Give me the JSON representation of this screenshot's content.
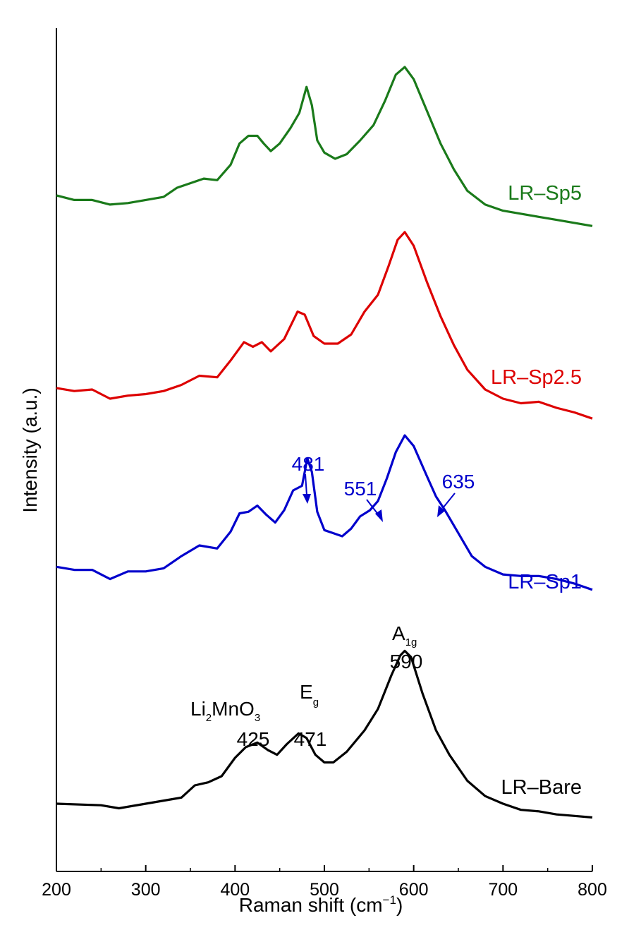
{
  "chart_data": {
    "type": "line",
    "title": "",
    "xlabel": "Raman shift (cm⁻¹)",
    "xlabel_parts": {
      "main": "Raman shift (cm",
      "sup": "−1",
      "close": ")"
    },
    "ylabel": "Intensity (a.u.)",
    "xlim": [
      200,
      800
    ],
    "xticks": [
      200,
      300,
      400,
      500,
      600,
      700,
      800
    ],
    "xtick_labels": [
      "200",
      "300",
      "400",
      "500",
      "600",
      "700",
      "800"
    ],
    "ylim": [
      0,
      1
    ],
    "yticks_shown": false,
    "series": [
      {
        "name": "LR–Bare",
        "color": "#000000",
        "points": [
          [
            200,
            0.036
          ],
          [
            250,
            0.034
          ],
          [
            270,
            0.03
          ],
          [
            300,
            0.036
          ],
          [
            330,
            0.042
          ],
          [
            340,
            0.044
          ],
          [
            355,
            0.06
          ],
          [
            370,
            0.064
          ],
          [
            385,
            0.072
          ],
          [
            400,
            0.096
          ],
          [
            412,
            0.11
          ],
          [
            425,
            0.116
          ],
          [
            437,
            0.106
          ],
          [
            447,
            0.1
          ],
          [
            458,
            0.114
          ],
          [
            471,
            0.128
          ],
          [
            480,
            0.122
          ],
          [
            490,
            0.1
          ],
          [
            500,
            0.09
          ],
          [
            510,
            0.09
          ],
          [
            525,
            0.104
          ],
          [
            545,
            0.132
          ],
          [
            560,
            0.16
          ],
          [
            575,
            0.204
          ],
          [
            585,
            0.23
          ],
          [
            590,
            0.236
          ],
          [
            597,
            0.228
          ],
          [
            610,
            0.18
          ],
          [
            625,
            0.132
          ],
          [
            640,
            0.1
          ],
          [
            660,
            0.066
          ],
          [
            680,
            0.046
          ],
          [
            700,
            0.036
          ],
          [
            720,
            0.028
          ],
          [
            740,
            0.026
          ],
          [
            760,
            0.022
          ],
          [
            780,
            0.02
          ],
          [
            800,
            0.018
          ]
        ]
      },
      {
        "name": "LR–Sp1",
        "color": "#0000cc",
        "points": [
          [
            200,
            0.346
          ],
          [
            220,
            0.342
          ],
          [
            240,
            0.342
          ],
          [
            260,
            0.33
          ],
          [
            280,
            0.34
          ],
          [
            300,
            0.34
          ],
          [
            320,
            0.344
          ],
          [
            340,
            0.36
          ],
          [
            360,
            0.374
          ],
          [
            380,
            0.37
          ],
          [
            395,
            0.392
          ],
          [
            405,
            0.416
          ],
          [
            415,
            0.418
          ],
          [
            425,
            0.426
          ],
          [
            435,
            0.414
          ],
          [
            445,
            0.404
          ],
          [
            455,
            0.42
          ],
          [
            465,
            0.446
          ],
          [
            475,
            0.452
          ],
          [
            481,
            0.488
          ],
          [
            486,
            0.47
          ],
          [
            492,
            0.418
          ],
          [
            500,
            0.394
          ],
          [
            510,
            0.39
          ],
          [
            520,
            0.386
          ],
          [
            530,
            0.396
          ],
          [
            540,
            0.412
          ],
          [
            551,
            0.42
          ],
          [
            560,
            0.432
          ],
          [
            570,
            0.462
          ],
          [
            580,
            0.496
          ],
          [
            590,
            0.518
          ],
          [
            600,
            0.504
          ],
          [
            615,
            0.464
          ],
          [
            625,
            0.438
          ],
          [
            635,
            0.42
          ],
          [
            650,
            0.39
          ],
          [
            665,
            0.36
          ],
          [
            680,
            0.346
          ],
          [
            700,
            0.336
          ],
          [
            720,
            0.334
          ],
          [
            740,
            0.334
          ],
          [
            760,
            0.33
          ],
          [
            780,
            0.324
          ],
          [
            800,
            0.316
          ]
        ]
      },
      {
        "name": "LR–Sp2.5",
        "color": "#dd0000",
        "points": [
          [
            200,
            0.58
          ],
          [
            220,
            0.576
          ],
          [
            240,
            0.578
          ],
          [
            260,
            0.566
          ],
          [
            280,
            0.57
          ],
          [
            300,
            0.572
          ],
          [
            320,
            0.576
          ],
          [
            340,
            0.584
          ],
          [
            360,
            0.596
          ],
          [
            380,
            0.594
          ],
          [
            395,
            0.616
          ],
          [
            410,
            0.64
          ],
          [
            420,
            0.634
          ],
          [
            430,
            0.64
          ],
          [
            440,
            0.628
          ],
          [
            455,
            0.644
          ],
          [
            470,
            0.68
          ],
          [
            478,
            0.676
          ],
          [
            488,
            0.648
          ],
          [
            500,
            0.638
          ],
          [
            515,
            0.638
          ],
          [
            530,
            0.65
          ],
          [
            545,
            0.68
          ],
          [
            560,
            0.702
          ],
          [
            572,
            0.74
          ],
          [
            582,
            0.774
          ],
          [
            590,
            0.784
          ],
          [
            600,
            0.766
          ],
          [
            615,
            0.718
          ],
          [
            630,
            0.674
          ],
          [
            645,
            0.636
          ],
          [
            660,
            0.604
          ],
          [
            680,
            0.578
          ],
          [
            700,
            0.566
          ],
          [
            720,
            0.56
          ],
          [
            740,
            0.562
          ],
          [
            760,
            0.554
          ],
          [
            780,
            0.548
          ],
          [
            800,
            0.54
          ]
        ]
      },
      {
        "name": "LR–Sp5",
        "color": "#1a7a1a",
        "points": [
          [
            200,
            0.832
          ],
          [
            220,
            0.826
          ],
          [
            240,
            0.826
          ],
          [
            260,
            0.82
          ],
          [
            280,
            0.822
          ],
          [
            300,
            0.826
          ],
          [
            320,
            0.83
          ],
          [
            335,
            0.842
          ],
          [
            350,
            0.848
          ],
          [
            365,
            0.854
          ],
          [
            380,
            0.852
          ],
          [
            395,
            0.872
          ],
          [
            405,
            0.9
          ],
          [
            415,
            0.91
          ],
          [
            425,
            0.91
          ],
          [
            432,
            0.9
          ],
          [
            440,
            0.89
          ],
          [
            450,
            0.9
          ],
          [
            462,
            0.92
          ],
          [
            472,
            0.94
          ],
          [
            480,
            0.974
          ],
          [
            486,
            0.95
          ],
          [
            492,
            0.904
          ],
          [
            500,
            0.888
          ],
          [
            512,
            0.88
          ],
          [
            525,
            0.886
          ],
          [
            540,
            0.904
          ],
          [
            555,
            0.924
          ],
          [
            568,
            0.956
          ],
          [
            580,
            0.99
          ],
          [
            590,
            1.0
          ],
          [
            600,
            0.984
          ],
          [
            615,
            0.942
          ],
          [
            630,
            0.9
          ],
          [
            645,
            0.866
          ],
          [
            660,
            0.838
          ],
          [
            680,
            0.82
          ],
          [
            700,
            0.812
          ],
          [
            720,
            0.808
          ],
          [
            740,
            0.804
          ],
          [
            760,
            0.8
          ],
          [
            780,
            0.796
          ],
          [
            800,
            0.792
          ]
        ]
      }
    ],
    "annotations": {
      "bare": {
        "li2mno3_text": "Li",
        "li2mno3_sub1": "2",
        "li2mno3_mid": "MnO",
        "li2mno3_sub2": "3",
        "peak425": "425",
        "eg_text": "E",
        "eg_sub": "g",
        "peak471": "471",
        "a1g_text": "A",
        "a1g_sub": "1g",
        "peak590": "590"
      },
      "sp1": {
        "peak481": "481",
        "peak551": "551",
        "peak635": "635"
      }
    }
  }
}
